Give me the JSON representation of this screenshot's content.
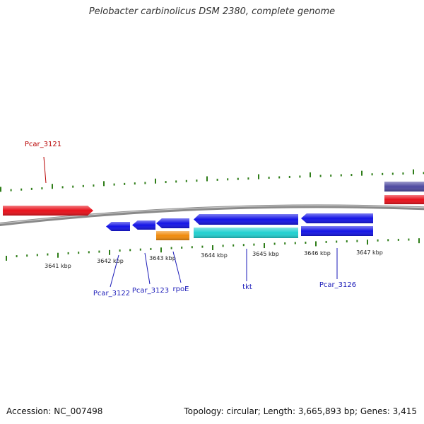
{
  "title": "Pelobacter carbinolicus DSM 2380, complete genome",
  "footer": {
    "accession": "Accession: NC_007498",
    "summary": "Topology: circular; Length: 3,665,893 bp; Genes: 3,415"
  },
  "colors": {
    "backbone": "#8a8a8a",
    "ticks": "#2e7d18",
    "gene_red": "#e8101a",
    "gene_blue": "#1414e6",
    "gene_orange": "#f08a0c",
    "gene_cyan": "#20d0d0",
    "gene_slate": "#4e4aa0",
    "label_red": "#b80000",
    "label_blue": "#1a1ab8"
  },
  "scale": {
    "ticks": [
      {
        "label": "3641 kbp"
      },
      {
        "label": "3642 kbp"
      },
      {
        "label": "3643 kbp"
      },
      {
        "label": "3644 kbp"
      },
      {
        "label": "3645 kbp"
      },
      {
        "label": "3646 kbp"
      },
      {
        "label": "3647 kbp"
      }
    ]
  },
  "genes": [
    {
      "label": "Pcar_3121",
      "color": "gene_red",
      "strand": "+",
      "track": 1
    },
    {
      "label": "Pcar_3122",
      "color": "gene_blue",
      "strand": "-",
      "track": -1
    },
    {
      "label": "Pcar_3123",
      "color": "gene_blue",
      "strand": "-",
      "track": -1
    },
    {
      "label": "rpoE",
      "color": "gene_blue",
      "strand": "-",
      "track": -1
    },
    {
      "label": "",
      "color": "gene_orange",
      "strand": "-",
      "track": -2
    },
    {
      "label": "tkt",
      "color": "gene_blue",
      "strand": "-",
      "track": -1
    },
    {
      "label": "",
      "color": "gene_cyan",
      "strand": "-",
      "track": -2
    },
    {
      "label": "Pcar_3126",
      "color": "gene_blue",
      "strand": "-",
      "track": -1
    },
    {
      "label": "",
      "color": "gene_blue",
      "strand": "-",
      "track": -2
    },
    {
      "label": "",
      "color": "gene_slate",
      "strand": "+",
      "track": 2
    },
    {
      "label": "",
      "color": "gene_red",
      "strand": "+",
      "track": 1
    }
  ]
}
